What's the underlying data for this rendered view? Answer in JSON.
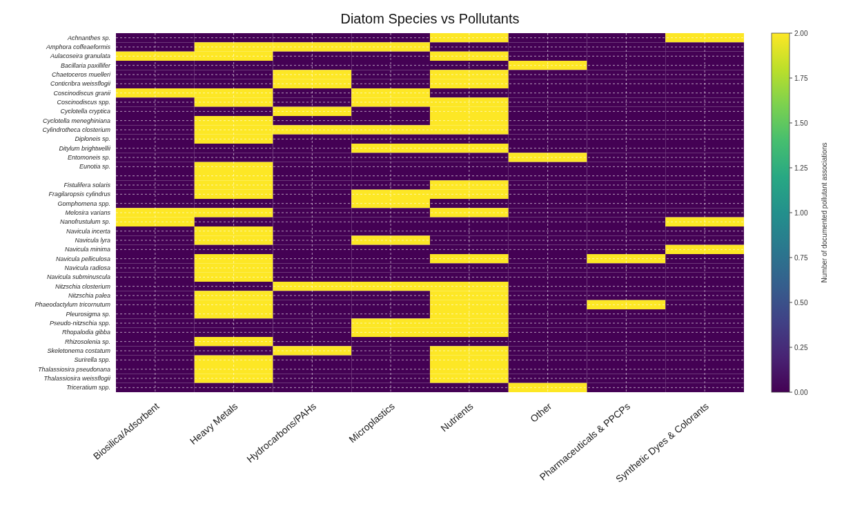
{
  "chart_data": {
    "type": "heatmap",
    "title": "Diatom Species vs Pollutants",
    "categories": [
      "Biosilica/Adsorbent",
      "Heavy Metals",
      "Hydrocarbons/PAHs",
      "Microplastics",
      "Nutrients",
      "Other",
      "Pharmaceuticals & PPCPs",
      "Synthetic Dyes & Colorants"
    ],
    "y_categories": [
      "Achnanthes sp.",
      "Amphora coffeaeformis",
      "Aulacoseira granulata",
      "Bacillaria paxillifer",
      "Chaetoceros muelleri",
      "Conticribra weissflogii",
      "Coscinodiscus granii",
      "Coscinodiscus spp.",
      "Cyclotella cryptica",
      "Cyclotella meneghiniana",
      "Cylindrotheca closterium",
      "Diploneis sp.",
      "Ditylum brightwellii",
      "Entomoneis sp.",
      "Eunotia sp.",
      null,
      "Fistulifera solaris",
      "Fragilaropsis cylindrus",
      "Gomphomena spp.",
      "Melosira varians",
      "Nanofrustulum sp.",
      "Navicula incerta",
      "Navicula lyra",
      "Navicula minima",
      "Navicula pelliculosa",
      "Navicula radiosa",
      "Navicula subminuscula",
      "Nitzschia closterium",
      "Nitzschia palea",
      "Phaeodactylum tricornutum",
      "Pleurosigma sp.",
      "Pseudo-nitzschia spp.",
      "Rhopalodia gibba",
      "Rhizosolenia sp.",
      "Skeletonema costatum",
      "Surirella spp.",
      "Thalassiosira pseudonana",
      "Thalassiosira weissflogii",
      "Triceratium spp."
    ],
    "cells": [
      [
        0,
        0,
        0,
        0,
        2,
        0,
        0,
        2
      ],
      [
        0,
        2,
        2,
        2,
        0,
        0,
        0,
        0
      ],
      [
        2,
        2,
        0,
        0,
        2,
        0,
        0,
        0
      ],
      [
        0,
        0,
        0,
        0,
        0,
        2,
        0,
        0
      ],
      [
        0,
        0,
        2,
        0,
        2,
        0,
        0,
        0
      ],
      [
        0,
        0,
        2,
        0,
        2,
        0,
        0,
        0
      ],
      [
        2,
        2,
        0,
        2,
        0,
        0,
        0,
        0
      ],
      [
        0,
        2,
        0,
        2,
        2,
        0,
        0,
        0
      ],
      [
        0,
        0,
        2,
        0,
        2,
        0,
        0,
        0
      ],
      [
        0,
        2,
        0,
        0,
        2,
        0,
        0,
        0
      ],
      [
        0,
        2,
        2,
        2,
        2,
        0,
        0,
        0
      ],
      [
        0,
        2,
        0,
        0,
        0,
        0,
        0,
        0
      ],
      [
        0,
        0,
        0,
        2,
        2,
        0,
        0,
        0
      ],
      [
        0,
        0,
        0,
        0,
        0,
        2,
        0,
        0
      ],
      [
        0,
        2,
        0,
        0,
        0,
        0,
        0,
        0
      ],
      [
        0,
        2,
        0,
        0,
        0,
        0,
        0,
        0
      ],
      [
        0,
        2,
        0,
        0,
        2,
        0,
        0,
        0
      ],
      [
        0,
        2,
        0,
        2,
        2,
        0,
        0,
        0
      ],
      [
        0,
        0,
        0,
        2,
        0,
        0,
        0,
        0
      ],
      [
        2,
        2,
        0,
        0,
        2,
        0,
        0,
        0
      ],
      [
        2,
        0,
        0,
        0,
        0,
        0,
        0,
        2
      ],
      [
        0,
        2,
        0,
        0,
        0,
        0,
        0,
        0
      ],
      [
        0,
        2,
        0,
        2,
        0,
        0,
        0,
        0
      ],
      [
        0,
        0,
        0,
        0,
        0,
        0,
        0,
        2
      ],
      [
        0,
        2,
        0,
        0,
        2,
        0,
        2,
        0
      ],
      [
        0,
        2,
        0,
        0,
        0,
        0,
        0,
        0
      ],
      [
        0,
        2,
        0,
        0,
        0,
        0,
        0,
        0
      ],
      [
        0,
        0,
        2,
        2,
        2,
        0,
        0,
        0
      ],
      [
        0,
        2,
        0,
        0,
        2,
        0,
        0,
        0
      ],
      [
        0,
        2,
        0,
        0,
        2,
        0,
        2,
        0
      ],
      [
        0,
        2,
        0,
        0,
        2,
        0,
        0,
        0
      ],
      [
        0,
        0,
        0,
        2,
        2,
        0,
        0,
        0
      ],
      [
        0,
        0,
        0,
        2,
        2,
        0,
        0,
        0
      ],
      [
        0,
        2,
        0,
        0,
        0,
        0,
        0,
        0
      ],
      [
        0,
        0,
        2,
        0,
        2,
        0,
        0,
        0
      ],
      [
        0,
        2,
        0,
        0,
        2,
        0,
        0,
        0
      ],
      [
        0,
        2,
        0,
        0,
        2,
        0,
        0,
        0
      ],
      [
        0,
        2,
        0,
        0,
        2,
        0,
        0,
        0
      ],
      [
        0,
        0,
        0,
        0,
        0,
        2,
        0,
        0
      ]
    ],
    "clabel": "Number of documented pollutant associations",
    "clim": [
      0,
      2
    ],
    "cticks": [
      {
        "value": 0,
        "label": "0.00"
      },
      {
        "value": 0.25,
        "label": "0.25"
      },
      {
        "value": 0.5,
        "label": "0.50"
      },
      {
        "value": 0.75,
        "label": "0.75"
      },
      {
        "value": 1,
        "label": "1.00"
      },
      {
        "value": 1.25,
        "label": "1.25"
      },
      {
        "value": 1.5,
        "label": "1.50"
      },
      {
        "value": 1.75,
        "label": "1.75"
      },
      {
        "value": 2,
        "label": "2.00"
      }
    ],
    "grid": true
  }
}
